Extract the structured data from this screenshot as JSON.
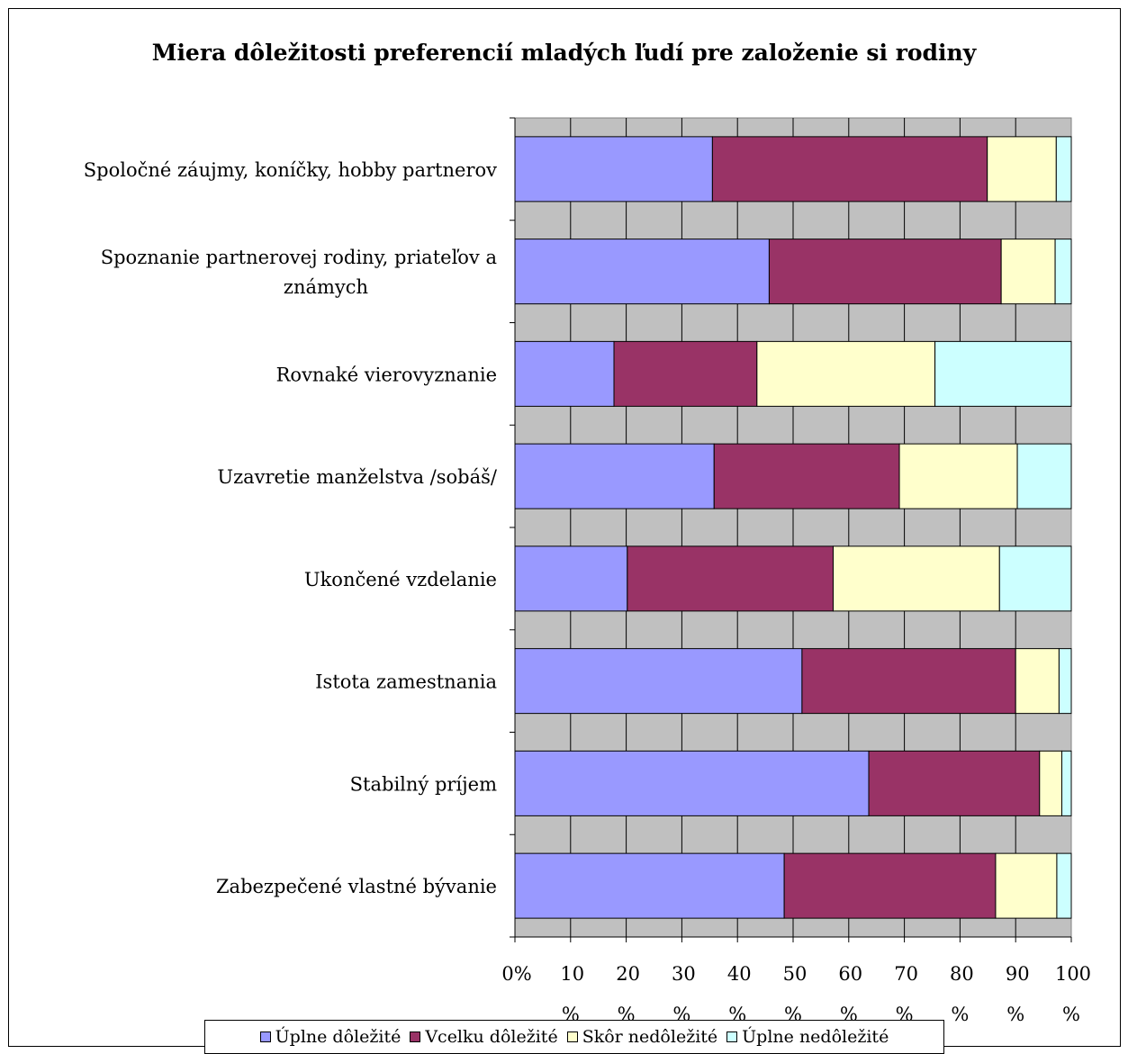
{
  "chart_data": {
    "type": "bar",
    "orientation": "horizontal",
    "stacked": "percent",
    "title": "Miera dôležitosti preferencií mladých ľudí pre založenie si rodiny",
    "categories": [
      "Spoločné záujmy, koníčky, hobby partnerov",
      "Spoznanie partnerovej rodiny, priateľov a známych",
      "Rovnaké vierovyznanie",
      "Uzavretie manželstva /sobáš/",
      "Ukončené vzdelanie",
      "Istota zamestnania",
      "Stabilný príjem",
      "Zabezpečené vlastné bývanie"
    ],
    "series": [
      {
        "name": "Úplne dôležité",
        "color": "#9999ff",
        "values": [
          35.5,
          45.7,
          17.8,
          35.8,
          20.2,
          51.6,
          63.6,
          48.4
        ]
      },
      {
        "name": "Vcelku dôležité",
        "color": "#993366",
        "values": [
          49.4,
          41.7,
          25.7,
          33.3,
          37.0,
          38.4,
          30.7,
          38.0
        ]
      },
      {
        "name": "Skôr nedôležité",
        "color": "#ffffcc",
        "values": [
          12.4,
          9.7,
          32.0,
          21.2,
          29.9,
          7.8,
          4.0,
          11.0
        ]
      },
      {
        "name": "Úplne nedôležité",
        "color": "#ccffff",
        "values": [
          2.7,
          2.9,
          24.5,
          9.7,
          12.9,
          2.2,
          1.7,
          2.6
        ]
      }
    ],
    "xlim": [
      0,
      100
    ],
    "x_ticks": [
      {
        "top": "0%",
        "bottom": ""
      },
      {
        "top": "10",
        "bottom": "%"
      },
      {
        "top": "20",
        "bottom": "%"
      },
      {
        "top": "30",
        "bottom": "%"
      },
      {
        "top": "40",
        "bottom": "%"
      },
      {
        "top": "50",
        "bottom": "%"
      },
      {
        "top": "60",
        "bottom": "%"
      },
      {
        "top": "70",
        "bottom": "%"
      },
      {
        "top": "80",
        "bottom": "%"
      },
      {
        "top": "90",
        "bottom": "%"
      },
      {
        "top": "100",
        "bottom": "%"
      }
    ],
    "plot_background": "#c0c0c0",
    "grid": true,
    "legend": "bottom"
  }
}
